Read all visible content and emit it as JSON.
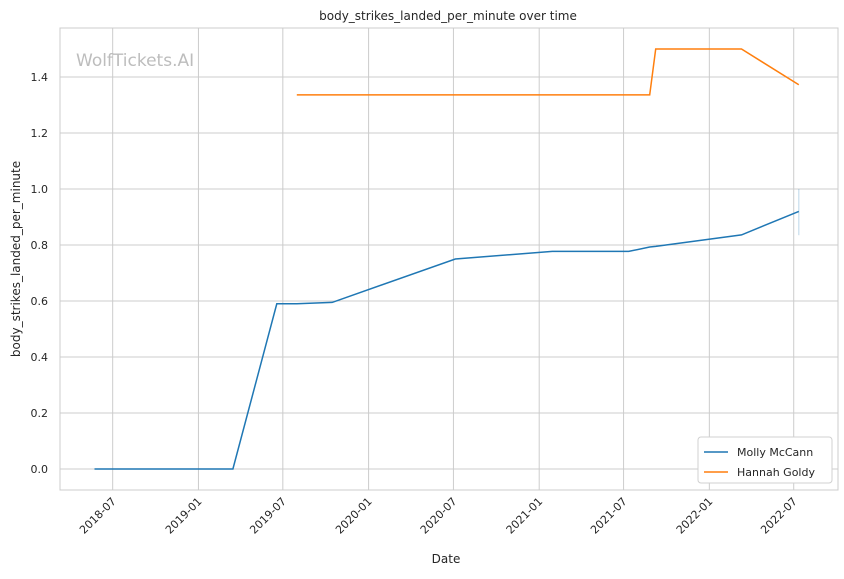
{
  "chart_data": {
    "type": "line",
    "title": "body_strikes_landed_per_minute over time",
    "xlabel": "Date",
    "ylabel": "body_strikes_landed_per_minute",
    "watermark": "WolfTickets.AI",
    "xlim": [
      "2018-03-10",
      "2022-10-04"
    ],
    "ylim": [
      -0.075,
      1.575
    ],
    "x_ticks": [
      "2018-07",
      "2019-01",
      "2019-07",
      "2020-01",
      "2020-07",
      "2021-01",
      "2021-07",
      "2022-01",
      "2022-07"
    ],
    "y_ticks": [
      "0.0",
      "0.2",
      "0.4",
      "0.6",
      "0.8",
      "1.0",
      "1.2",
      "1.4"
    ],
    "grid": true,
    "legend_position": "bottom-right",
    "series": [
      {
        "name": "Molly McCann",
        "color": "#1f77b4",
        "x": [
          "2018-05-23",
          "2019-03-16",
          "2019-06-18",
          "2019-07-31",
          "2019-10-15",
          "2020-07-05",
          "2021-01-29",
          "2021-07-12",
          "2021-08-26",
          "2021-09-08",
          "2022-03-11",
          "2022-07-12"
        ],
        "y": [
          0.0,
          0.0,
          0.59,
          0.59,
          0.595,
          0.75,
          0.777,
          0.777,
          0.793,
          0.795,
          0.836,
          0.92
        ],
        "error_band_at_last": [
          0.835,
          1.0
        ]
      },
      {
        "name": "Hannah Goldy",
        "color": "#ff7f0e",
        "x": [
          "2019-07-31",
          "2021-08-26",
          "2021-09-08",
          "2022-03-11",
          "2022-07-12"
        ],
        "y": [
          1.336,
          1.336,
          1.5,
          1.5,
          1.372
        ]
      }
    ]
  }
}
